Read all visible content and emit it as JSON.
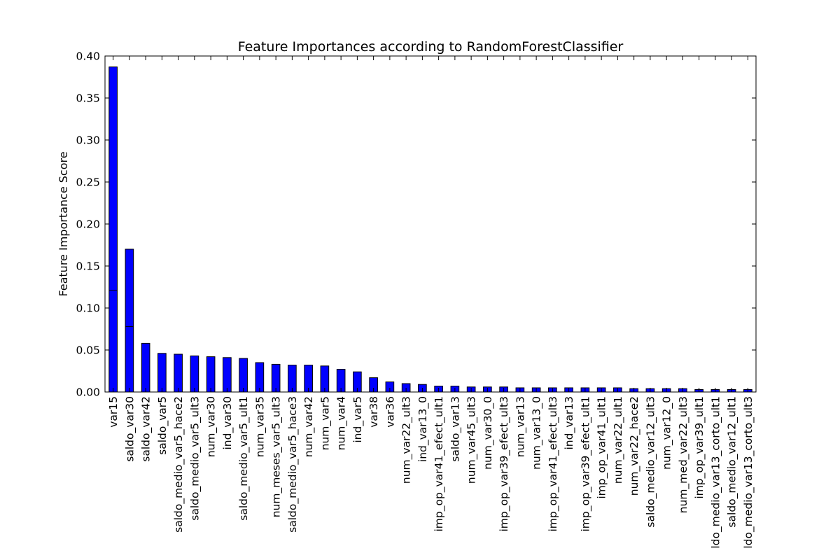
{
  "chart_data": {
    "type": "bar",
    "title": "Feature Importances according to RandomForestClassifier",
    "xlabel": "",
    "ylabel": "Feature Importance Score",
    "ylim": [
      0,
      0.4
    ],
    "yticks": [
      "0.00",
      "0.05",
      "0.10",
      "0.15",
      "0.20",
      "0.25",
      "0.30",
      "0.35",
      "0.40"
    ],
    "grid": false,
    "bar_color": "#0000ff",
    "edge_color": "#000000",
    "categories": [
      "var15",
      "saldo_var30",
      "saldo_var42",
      "saldo_var5",
      "saldo_medio_var5_hace2",
      "saldo_medio_var5_ult3",
      "num_var30",
      "ind_var30",
      "saldo_medio_var5_ult1",
      "num_var35",
      "num_meses_var5_ult3",
      "saldo_medio_var5_hace3",
      "num_var42",
      "num_var5",
      "num_var4",
      "ind_var5",
      "var38",
      "var36",
      "num_var22_ult3",
      "ind_var13_0",
      "imp_op_var41_efect_ult1",
      "saldo_var13",
      "num_var45_ult3",
      "num_var30_0",
      "imp_op_var39_efect_ult3",
      "num_var13",
      "num_var13_0",
      "imp_op_var41_efect_ult3",
      "ind_var13",
      "imp_op_var39_efect_ult1",
      "imp_op_var41_ult1",
      "num_var22_ult1",
      "num_var22_hace2",
      "saldo_medio_var12_ult3",
      "num_var12_0",
      "num_med_var22_ult3",
      "imp_op_var39_ult1",
      "ldo_medio_var13_corto_ult1",
      "saldo_medio_var12_ult1",
      "ldo_medio_var13_corto_ult3"
    ],
    "values": [
      0.387,
      0.17,
      0.058,
      0.046,
      0.045,
      0.043,
      0.042,
      0.041,
      0.04,
      0.035,
      0.033,
      0.032,
      0.032,
      0.031,
      0.027,
      0.024,
      0.017,
      0.012,
      0.01,
      0.009,
      0.007,
      0.007,
      0.006,
      0.006,
      0.006,
      0.005,
      0.005,
      0.005,
      0.005,
      0.005,
      0.005,
      0.005,
      0.004,
      0.004,
      0.004,
      0.004,
      0.003,
      0.003,
      0.003,
      0.003
    ],
    "inner_segments": [
      0.121,
      0.078
    ]
  }
}
